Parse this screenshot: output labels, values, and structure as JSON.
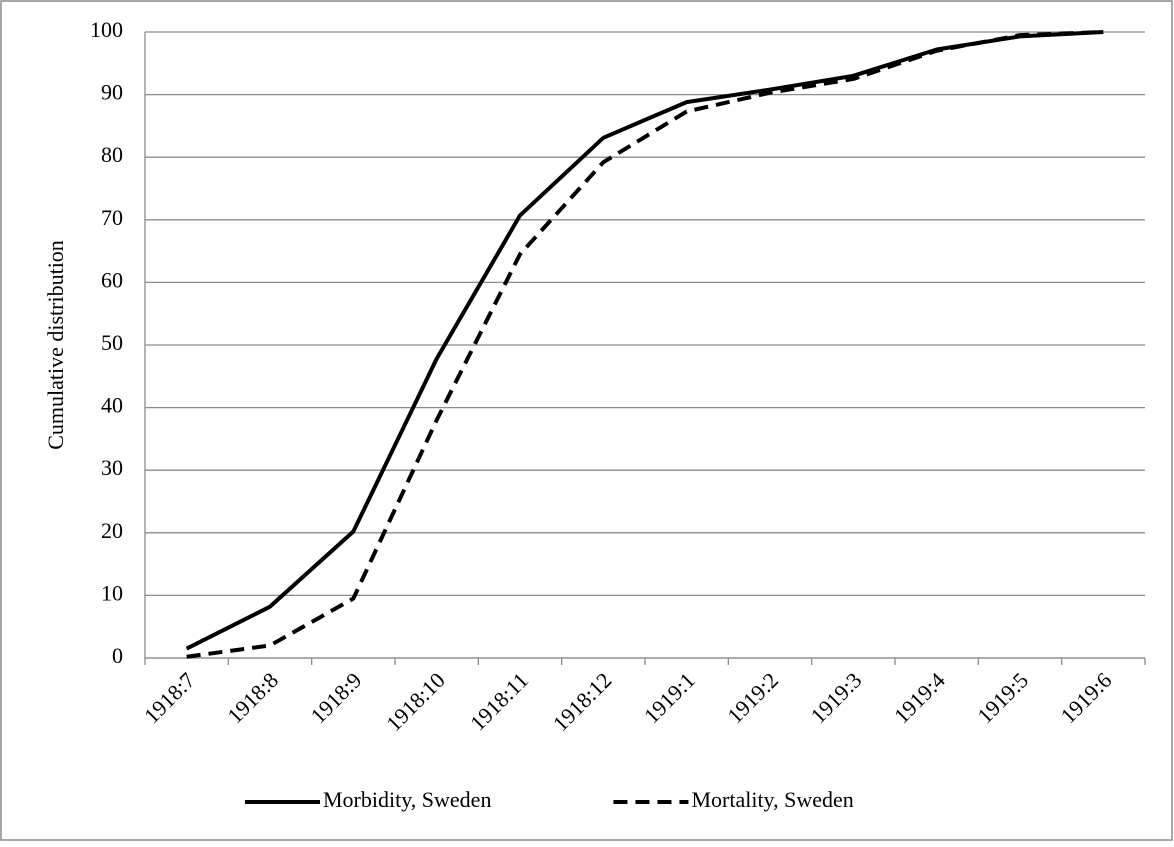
{
  "chart_data": {
    "type": "line",
    "y_label": "Cumulative distribution",
    "categories": [
      "1918:7",
      "1918:8",
      "1918:9",
      "1918:10",
      "1918:11",
      "1918:12",
      "1919:1",
      "1919:2",
      "1919:3",
      "1919:4",
      "1919:5",
      "1919:6"
    ],
    "series": [
      {
        "name": "Morbidity, Sweden",
        "color": "#000000",
        "linestyle": "solid",
        "values": [
          1.5,
          8.2,
          20.2,
          47.8,
          70.7,
          83.1,
          88.8,
          90.8,
          93,
          97.2,
          99.3,
          100
        ]
      },
      {
        "name": "Mortality, Sweden",
        "color": "#000000",
        "linestyle": "dashed",
        "values": [
          0.2,
          2,
          9.5,
          38,
          64.5,
          79.2,
          87.3,
          90.3,
          92.5,
          97,
          99.5,
          100
        ]
      }
    ],
    "ylim": [
      0,
      100
    ],
    "yticks": [
      0,
      10,
      20,
      30,
      40,
      50,
      60,
      70,
      80,
      90,
      100
    ],
    "grid": true,
    "legend": "bottom"
  }
}
